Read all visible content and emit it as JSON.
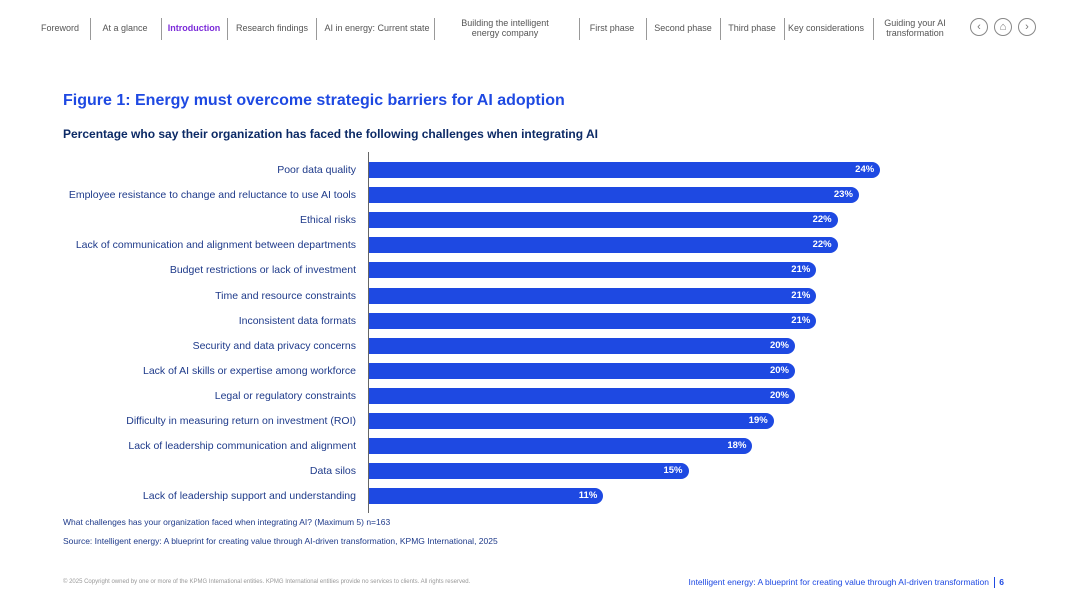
{
  "nav": {
    "items": [
      {
        "label": "Foreword",
        "active": false
      },
      {
        "label": "At a glance",
        "active": false
      },
      {
        "label": "Introduction",
        "active": true
      },
      {
        "label": "Research findings",
        "active": false
      },
      {
        "label": "AI in energy: Current state",
        "active": false
      },
      {
        "label": "Building the intelligent\nenergy company",
        "active": false
      },
      {
        "label": "First phase",
        "active": false
      },
      {
        "label": "Second phase",
        "active": false
      },
      {
        "label": "Third phase",
        "active": false
      },
      {
        "label": "Key considerations",
        "active": false
      },
      {
        "label": "Guiding your AI\ntransformation",
        "active": false
      }
    ],
    "buttons": {
      "back_icon": "‹",
      "home_icon": "⌂",
      "forward_icon": "›"
    }
  },
  "figure": {
    "title": "Figure 1: Energy must overcome strategic barriers for AI adoption",
    "subtitle": "Percentage who say their organization has faced the following challenges when integrating AI"
  },
  "chart_data": {
    "type": "bar",
    "orientation": "horizontal",
    "title": "Figure 1: Energy must overcome strategic barriers for AI adoption",
    "subtitle": "Percentage who say their organization has faced the following challenges when integrating AI",
    "unit": "%",
    "xlim": [
      0,
      35
    ],
    "color": "#1e49e2",
    "categories": [
      "Poor data quality",
      "Employee resistance to change and reluctance to use AI tools",
      "Ethical risks",
      "Lack of communication and alignment between departments",
      "Budget restrictions or lack of investment",
      "Time and resource constraints",
      "Inconsistent data formats",
      "Security and data privacy concerns",
      "Lack of AI skills or expertise among workforce",
      "Legal or regulatory constraints",
      "Difficulty in measuring return on investment (ROI)",
      "Lack of leadership communication and alignment",
      "Data silos",
      "Lack of leadership support and understanding"
    ],
    "values": [
      24,
      23,
      22,
      22,
      21,
      21,
      21,
      20,
      20,
      20,
      19,
      18,
      15,
      11
    ],
    "value_labels": [
      "24%",
      "23%",
      "22%",
      "22%",
      "21%",
      "21%",
      "21%",
      "20%",
      "20%",
      "20%",
      "19%",
      "18%",
      "15%",
      "11%"
    ]
  },
  "notes": {
    "question": "What challenges has your organization faced when integrating AI? (Maximum 5) n=163",
    "source": "Source: Intelligent energy: A blueprint for creating value through AI-driven transformation, KPMG International, 2025"
  },
  "footer": {
    "copyright": "© 2025 Copyright owned by one or more of the KPMG International entities. KPMG International entities provide no services to clients. All rights reserved.",
    "title": "Intelligent energy: A blueprint for creating value through AI-driven transformation",
    "page_number": "6"
  }
}
